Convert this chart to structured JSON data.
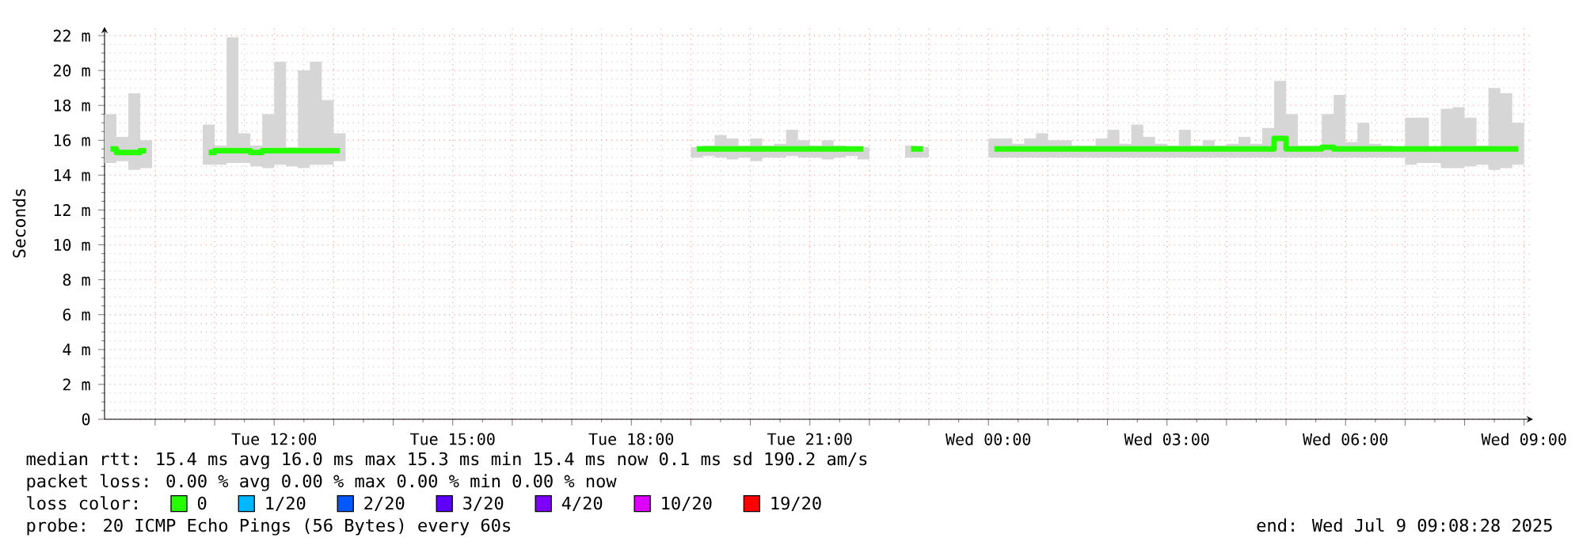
{
  "chart_data": {
    "type": "step",
    "ylabel": "Seconds",
    "xlim": [
      "2025-07-08T09:09",
      "2025-07-09T09:09"
    ],
    "xticks": [
      {
        "value": "2025-07-08T10:00",
        "label": null
      },
      {
        "value": "2025-07-08T11:00",
        "label": null
      },
      {
        "value": "2025-07-08T12:00",
        "label": "Tue 12:00"
      },
      {
        "value": "2025-07-08T13:00",
        "label": null
      },
      {
        "value": "2025-07-08T14:00",
        "label": null
      },
      {
        "value": "2025-07-08T15:00",
        "label": "Tue 15:00"
      },
      {
        "value": "2025-07-08T16:00",
        "label": null
      },
      {
        "value": "2025-07-08T17:00",
        "label": null
      },
      {
        "value": "2025-07-08T18:00",
        "label": "Tue 18:00"
      },
      {
        "value": "2025-07-08T19:00",
        "label": null
      },
      {
        "value": "2025-07-08T20:00",
        "label": null
      },
      {
        "value": "2025-07-08T21:00",
        "label": "Tue 21:00"
      },
      {
        "value": "2025-07-08T22:00",
        "label": null
      },
      {
        "value": "2025-07-08T23:00",
        "label": null
      },
      {
        "value": "2025-07-09T00:00",
        "label": "Wed 00:00"
      },
      {
        "value": "2025-07-09T01:00",
        "label": null
      },
      {
        "value": "2025-07-09T02:00",
        "label": null
      },
      {
        "value": "2025-07-09T03:00",
        "label": "Wed 03:00"
      },
      {
        "value": "2025-07-09T04:00",
        "label": null
      },
      {
        "value": "2025-07-09T05:00",
        "label": null
      },
      {
        "value": "2025-07-09T06:00",
        "label": "Wed 06:00"
      },
      {
        "value": "2025-07-09T07:00",
        "label": null
      },
      {
        "value": "2025-07-09T08:00",
        "label": null
      },
      {
        "value": "2025-07-09T09:00",
        "label": "Wed 09:00"
      }
    ],
    "ylim": [
      0,
      22.5
    ],
    "yticks": [
      0,
      {
        "value": 2,
        "label": "2 m"
      },
      {
        "value": 4,
        "label": "4 m"
      },
      {
        "value": 6,
        "label": "6 m"
      },
      {
        "value": 8,
        "label": "8 m"
      },
      {
        "value": 10,
        "label": "10 m"
      },
      {
        "value": 12,
        "label": "12 m"
      },
      {
        "value": 14,
        "label": "14 m"
      },
      {
        "value": 16,
        "label": "16 m"
      },
      {
        "value": 18,
        "label": "18 m"
      },
      {
        "value": 20,
        "label": "20 m"
      },
      {
        "value": 22,
        "label": "22 m"
      }
    ],
    "grid": true,
    "legend": "bottom",
    "x": [
      "2025-07-08T09:15",
      "2025-07-08T09:27",
      "2025-07-08T09:39",
      "2025-07-08T09:51",
      "2025-07-08T10:18",
      "2025-07-08T10:54",
      "2025-07-08T11:06",
      "2025-07-08T11:18",
      "2025-07-08T11:30",
      "2025-07-08T11:42",
      "2025-07-08T11:54",
      "2025-07-08T12:06",
      "2025-07-08T12:18",
      "2025-07-08T12:30",
      "2025-07-08T12:42",
      "2025-07-08T12:54",
      "2025-07-08T13:06",
      "2025-07-08T16:00",
      "2025-07-08T19:06",
      "2025-07-08T19:18",
      "2025-07-08T19:30",
      "2025-07-08T19:42",
      "2025-07-08T19:54",
      "2025-07-08T20:06",
      "2025-07-08T20:18",
      "2025-07-08T20:30",
      "2025-07-08T20:42",
      "2025-07-08T20:54",
      "2025-07-08T21:06",
      "2025-07-08T21:18",
      "2025-07-08T21:30",
      "2025-07-08T21:42",
      "2025-07-08T21:54",
      "2025-07-08T22:18",
      "2025-07-08T22:42",
      "2025-07-08T22:54",
      "2025-07-08T23:27",
      "2025-07-09T00:06",
      "2025-07-09T00:18",
      "2025-07-09T00:30",
      "2025-07-09T00:42",
      "2025-07-09T00:54",
      "2025-07-09T01:06",
      "2025-07-09T01:18",
      "2025-07-09T01:30",
      "2025-07-09T01:42",
      "2025-07-09T01:54",
      "2025-07-09T02:06",
      "2025-07-09T02:18",
      "2025-07-09T02:30",
      "2025-07-09T02:42",
      "2025-07-09T02:54",
      "2025-07-09T03:06",
      "2025-07-09T03:18",
      "2025-07-09T03:30",
      "2025-07-09T03:42",
      "2025-07-09T03:54",
      "2025-07-09T04:06",
      "2025-07-09T04:18",
      "2025-07-09T04:30",
      "2025-07-09T04:42",
      "2025-07-09T04:54",
      "2025-07-09T05:06",
      "2025-07-09T05:18",
      "2025-07-09T05:30",
      "2025-07-09T05:42",
      "2025-07-09T05:54",
      "2025-07-09T06:06",
      "2025-07-09T06:18",
      "2025-07-09T06:30",
      "2025-07-09T06:42",
      "2025-07-09T06:54",
      "2025-07-09T07:06",
      "2025-07-09T07:18",
      "2025-07-09T07:30",
      "2025-07-09T07:42",
      "2025-07-09T07:54",
      "2025-07-09T08:06",
      "2025-07-09T08:18",
      "2025-07-09T08:30",
      "2025-07-09T08:42",
      "2025-07-09T08:54"
    ],
    "series": [
      {
        "name": "0",
        "color": "#26ff00",
        "values": [
          15.5,
          15.3,
          15.3,
          15.4,
          null,
          15.3,
          15.4,
          15.4,
          15.4,
          15.3,
          15.4,
          15.4,
          15.4,
          15.4,
          15.4,
          15.4,
          15.4,
          null,
          15.5,
          15.5,
          15.5,
          15.5,
          15.5,
          15.5,
          15.5,
          15.5,
          15.5,
          15.5,
          15.5,
          15.5,
          15.5,
          15.5,
          15.5,
          null,
          15.5,
          15.5,
          null,
          15.5,
          15.5,
          15.5,
          15.5,
          15.5,
          15.5,
          15.5,
          15.5,
          15.5,
          15.5,
          15.5,
          15.5,
          15.5,
          15.5,
          15.5,
          15.5,
          15.5,
          15.5,
          15.5,
          15.5,
          15.5,
          15.5,
          15.5,
          15.5,
          16.1,
          15.5,
          15.5,
          15.5,
          15.6,
          15.5,
          15.5,
          15.5,
          15.5,
          15.5,
          15.5,
          15.5,
          15.5,
          15.5,
          15.5,
          15.5,
          15.5,
          15.5,
          15.5,
          15.5,
          15.5
        ],
        "lower": [
          14.7,
          14.8,
          14.3,
          14.4,
          null,
          14.6,
          14.6,
          14.7,
          14.7,
          14.5,
          14.4,
          14.6,
          14.5,
          14.4,
          14.6,
          14.6,
          14.8,
          null,
          15.0,
          15.1,
          15.0,
          14.9,
          15.0,
          14.8,
          15.0,
          15.0,
          15.1,
          15.0,
          15.0,
          14.9,
          15.0,
          15.1,
          14.9,
          null,
          15.0,
          15.0,
          null,
          15.0,
          15.0,
          15.0,
          15.0,
          15.0,
          15.0,
          15.0,
          15.0,
          15.0,
          15.0,
          15.0,
          15.0,
          15.0,
          15.0,
          15.0,
          15.0,
          15.0,
          15.0,
          15.0,
          15.0,
          15.0,
          15.0,
          15.0,
          15.0,
          15.0,
          15.0,
          15.0,
          15.0,
          15.0,
          15.0,
          15.0,
          15.0,
          15.0,
          15.0,
          15.0,
          14.6,
          14.7,
          14.7,
          14.4,
          14.4,
          14.5,
          14.6,
          14.3,
          14.4,
          14.6
        ],
        "upper": [
          17.5,
          16.2,
          18.7,
          16.0,
          null,
          16.9,
          15.7,
          21.9,
          16.4,
          15.7,
          17.5,
          20.5,
          15.6,
          20.0,
          20.5,
          18.3,
          16.4,
          null,
          15.6,
          15.7,
          16.3,
          16.1,
          15.7,
          16.1,
          15.7,
          15.8,
          16.6,
          16.0,
          15.7,
          16.0,
          15.7,
          15.6,
          15.6,
          null,
          15.7,
          15.6,
          null,
          16.1,
          16.1,
          15.8,
          16.1,
          16.4,
          16.0,
          16.0,
          15.7,
          15.7,
          16.1,
          16.6,
          15.8,
          16.9,
          16.2,
          15.8,
          15.7,
          16.6,
          15.7,
          16.0,
          15.7,
          15.8,
          16.2,
          15.8,
          16.7,
          19.4,
          17.5,
          15.7,
          15.7,
          17.5,
          18.6,
          15.9,
          17.0,
          15.8,
          15.7,
          15.6,
          17.3,
          17.3,
          15.6,
          17.8,
          17.9,
          17.3,
          15.7,
          19.0,
          18.7,
          17.0
        ]
      },
      {
        "name": "1/20",
        "color": "#00b8ff",
        "values": [
          null,
          null,
          null,
          null,
          null,
          null,
          null,
          null,
          null,
          null,
          null,
          null,
          null,
          null,
          null,
          null,
          null,
          null,
          null,
          null,
          null,
          null,
          null,
          null,
          null,
          null,
          null,
          null,
          null,
          null,
          null,
          null,
          null,
          null,
          null,
          null,
          null,
          null,
          null,
          null,
          null,
          null,
          null,
          null,
          null,
          null,
          null,
          null,
          null,
          null,
          null,
          null,
          null,
          null,
          null,
          null,
          null,
          null,
          null,
          null,
          null,
          null,
          null,
          null,
          null,
          null,
          null,
          null,
          null,
          null,
          null,
          null,
          null,
          null,
          null,
          null,
          null,
          null,
          null,
          null,
          null,
          null
        ]
      },
      {
        "name": "2/20",
        "color": "#0059ff",
        "values": [
          null,
          null,
          null,
          null,
          null,
          null,
          null,
          null,
          null,
          null,
          null,
          null,
          null,
          null,
          null,
          null,
          null,
          null,
          null,
          null,
          null,
          null,
          null,
          null,
          null,
          null,
          null,
          null,
          null,
          null,
          null,
          null,
          null,
          null,
          null,
          null,
          null,
          null,
          null,
          null,
          null,
          null,
          null,
          null,
          null,
          null,
          null,
          null,
          null,
          null,
          null,
          null,
          null,
          null,
          null,
          null,
          null,
          null,
          null,
          null,
          null,
          null,
          null,
          null,
          null,
          null,
          null,
          null,
          null,
          null,
          null,
          null,
          null,
          null,
          null,
          null,
          null,
          null,
          null,
          null,
          null,
          null
        ]
      },
      {
        "name": "3/20",
        "color": "#5e00ff",
        "values": [
          null,
          null,
          null,
          null,
          null,
          null,
          null,
          null,
          null,
          null,
          null,
          null,
          null,
          null,
          null,
          null,
          null,
          null,
          null,
          null,
          null,
          null,
          null,
          null,
          null,
          null,
          null,
          null,
          null,
          null,
          null,
          null,
          null,
          null,
          null,
          null,
          null,
          null,
          null,
          null,
          null,
          null,
          null,
          null,
          null,
          null,
          null,
          null,
          null,
          null,
          null,
          null,
          null,
          null,
          null,
          null,
          null,
          null,
          null,
          null,
          null,
          null,
          null,
          null,
          null,
          null,
          null,
          null,
          null,
          null,
          null,
          null,
          null,
          null,
          null,
          null,
          null,
          null,
          null,
          null,
          null,
          null
        ]
      },
      {
        "name": "4/20",
        "color": "#7e00ff",
        "values": [
          null,
          null,
          null,
          null,
          null,
          null,
          null,
          null,
          null,
          null,
          null,
          null,
          null,
          null,
          null,
          null,
          null,
          null,
          null,
          null,
          null,
          null,
          null,
          null,
          null,
          null,
          null,
          null,
          null,
          null,
          null,
          null,
          null,
          null,
          null,
          null,
          null,
          null,
          null,
          null,
          null,
          null,
          null,
          null,
          null,
          null,
          null,
          null,
          null,
          null,
          null,
          null,
          null,
          null,
          null,
          null,
          null,
          null,
          null,
          null,
          null,
          null,
          null,
          null,
          null,
          null,
          null,
          null,
          null,
          null,
          null,
          null,
          null,
          null,
          null,
          null,
          null,
          null,
          null,
          null,
          null,
          null
        ]
      },
      {
        "name": "10/20",
        "color": "#dd00ff",
        "values": [
          null,
          null,
          null,
          null,
          null,
          null,
          null,
          null,
          null,
          null,
          null,
          null,
          null,
          null,
          null,
          null,
          null,
          null,
          null,
          null,
          null,
          null,
          null,
          null,
          null,
          null,
          null,
          null,
          null,
          null,
          null,
          null,
          null,
          null,
          null,
          null,
          null,
          null,
          null,
          null,
          null,
          null,
          null,
          null,
          null,
          null,
          null,
          null,
          null,
          null,
          null,
          null,
          null,
          null,
          null,
          null,
          null,
          null,
          null,
          null,
          null,
          null,
          null,
          null,
          null,
          null,
          null,
          null,
          null,
          null,
          null,
          null,
          null,
          null,
          null,
          null,
          null,
          null,
          null,
          null,
          null,
          null
        ]
      },
      {
        "name": "19/20",
        "color": "#ff0000",
        "values": [
          null,
          null,
          null,
          null,
          null,
          null,
          null,
          null,
          null,
          null,
          null,
          null,
          null,
          null,
          null,
          null,
          null,
          null,
          null,
          null,
          null,
          null,
          null,
          null,
          null,
          null,
          null,
          null,
          null,
          null,
          null,
          null,
          null,
          null,
          null,
          null,
          null,
          null,
          null,
          null,
          null,
          null,
          null,
          null,
          null,
          null,
          null,
          null,
          null,
          null,
          null,
          null,
          null,
          null,
          null,
          null,
          null,
          null,
          null,
          null,
          null,
          null,
          null,
          null,
          null,
          null,
          null,
          null,
          null,
          null,
          null,
          null,
          null,
          null,
          null,
          null,
          null,
          null,
          null,
          null,
          null,
          null
        ]
      }
    ],
    "annotations": [
      "median rtt:  15.4 ms avg  16.0 ms max  15.3 ms min  15.4 ms now  0.1 ms sd  190.2   am/s",
      "packet loss: 0.00 % avg  0.00 % max  0.00 % min  0.00 % now",
      "loss color:",
      "probe:       20 ICMP Echo Pings (56 Bytes) every 60s",
      "end: Wed Jul  9 09:08:28 2025"
    ]
  }
}
